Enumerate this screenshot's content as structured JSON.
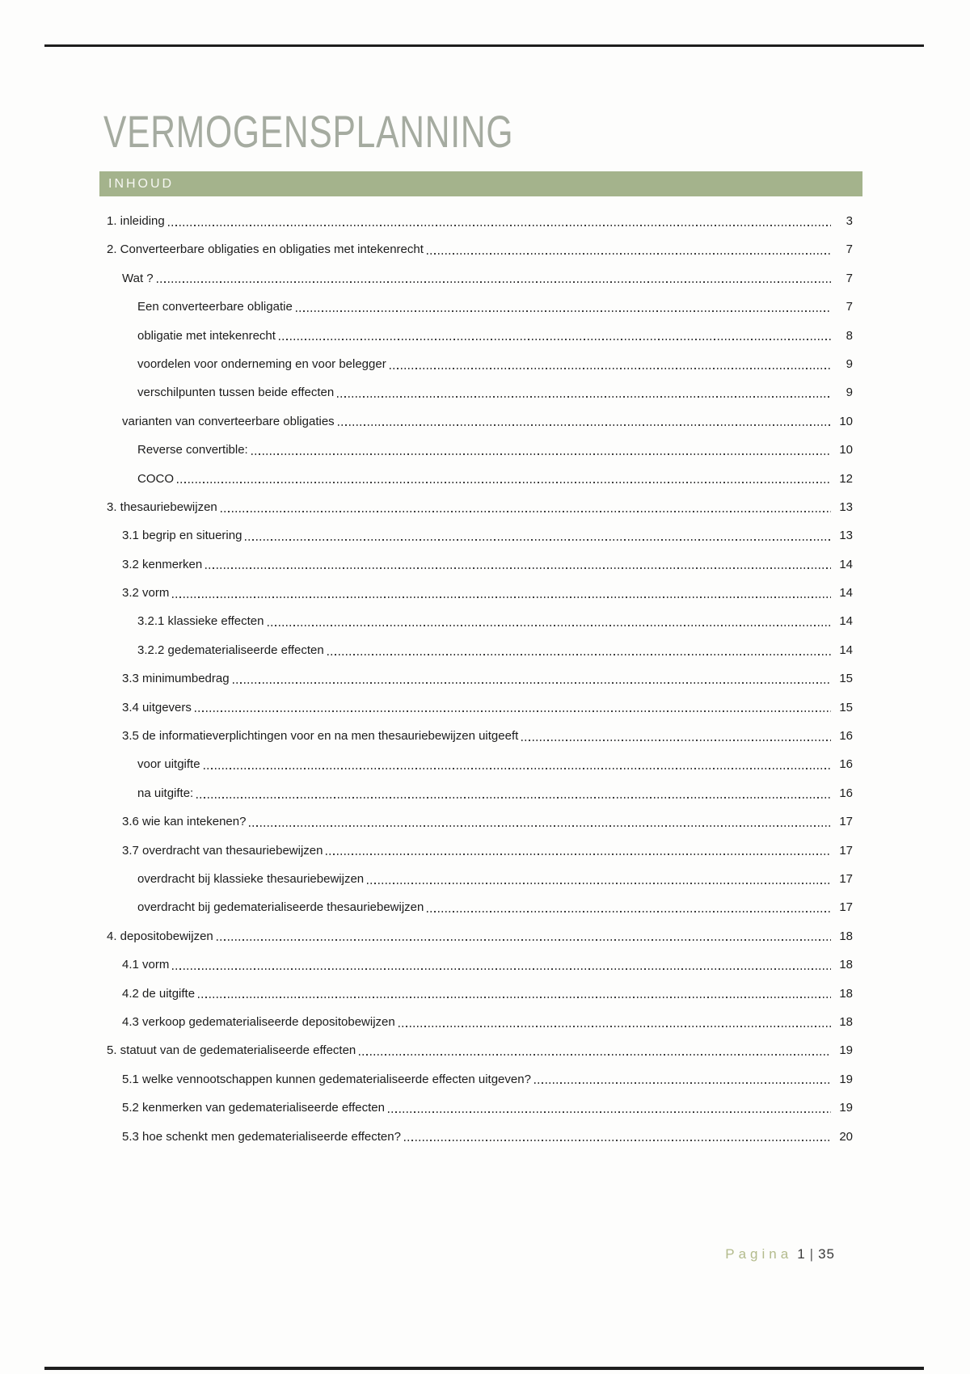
{
  "page": {
    "title": "VERMOGENSPLANNING",
    "toc_header": "INHOUD",
    "footer": {
      "label": "Pagina",
      "page_current": "1",
      "separator": "|",
      "page_total": "35"
    },
    "colors": {
      "accent_bar": "#a4b38c",
      "title_text": "#a5aba0",
      "footer_label": "#b3bb8c",
      "body_text": "#1c1c1c",
      "rule": "#1e1e1e"
    }
  },
  "toc": {
    "entries": [
      {
        "label": "1. inleiding",
        "level": 0,
        "page": "3"
      },
      {
        "label": "2. Converteerbare obligaties en obligaties met intekenrecht",
        "level": 0,
        "page": "7"
      },
      {
        "label": "Wat ?",
        "level": 1,
        "page": "7"
      },
      {
        "label": "Een converteerbare obligatie",
        "level": 2,
        "page": "7"
      },
      {
        "label": "obligatie met intekenrecht",
        "level": 2,
        "page": "8"
      },
      {
        "label": "voordelen voor onderneming en voor belegger",
        "level": 2,
        "page": "9"
      },
      {
        "label": "verschilpunten tussen beide effecten",
        "level": 2,
        "page": "9"
      },
      {
        "label": "varianten van converteerbare obligaties",
        "level": 1,
        "page": "10"
      },
      {
        "label": "Reverse convertible:",
        "level": 2,
        "page": "10"
      },
      {
        "label": "COCO",
        "level": 2,
        "page": "12"
      },
      {
        "label": "3. thesauriebewijzen",
        "level": 0,
        "page": "13"
      },
      {
        "label": "3.1 begrip en situering",
        "level": 1,
        "page": "13"
      },
      {
        "label": "3.2 kenmerken",
        "level": 1,
        "page": "14"
      },
      {
        "label": "3.2 vorm",
        "level": 1,
        "page": "14"
      },
      {
        "label": "3.2.1 klassieke effecten",
        "level": 2,
        "page": "14"
      },
      {
        "label": "3.2.2 gedematerialiseerde effecten",
        "level": 2,
        "page": "14"
      },
      {
        "label": "3.3 minimumbedrag",
        "level": 1,
        "page": "15"
      },
      {
        "label": "3.4 uitgevers",
        "level": 1,
        "page": "15"
      },
      {
        "label": "3.5 de informatieverplichtingen voor en na men thesauriebewijzen uitgeeft",
        "level": 1,
        "page": "16"
      },
      {
        "label": "voor uitgifte",
        "level": 2,
        "page": "16"
      },
      {
        "label": "na uitgifte:",
        "level": 2,
        "page": "16"
      },
      {
        "label": "3.6 wie kan intekenen?",
        "level": 1,
        "page": "17"
      },
      {
        "label": "3.7 overdracht van thesauriebewijzen",
        "level": 1,
        "page": "17"
      },
      {
        "label": "overdracht bij klassieke thesauriebewijzen",
        "level": 2,
        "page": "17"
      },
      {
        "label": "overdracht bij gedematerialiseerde thesauriebewijzen",
        "level": 2,
        "page": "17"
      },
      {
        "label": "4. depositobewijzen",
        "level": 0,
        "page": "18"
      },
      {
        "label": "4.1 vorm",
        "level": 1,
        "page": "18"
      },
      {
        "label": "4.2 de uitgifte",
        "level": 1,
        "page": "18"
      },
      {
        "label": "4.3 verkoop gedematerialiseerde depositobewijzen",
        "level": 1,
        "page": "18"
      },
      {
        "label": "5. statuut van de gedematerialiseerde effecten",
        "level": 0,
        "page": "19"
      },
      {
        "label": "5.1 welke vennootschappen kunnen gedematerialiseerde effecten uitgeven?",
        "level": 1,
        "page": "19"
      },
      {
        "label": "5.2 kenmerken van gedematerialiseerde effecten",
        "level": 1,
        "page": "19"
      },
      {
        "label": "5.3 hoe schenkt men gedematerialiseerde effecten?",
        "level": 1,
        "page": "20"
      }
    ]
  }
}
